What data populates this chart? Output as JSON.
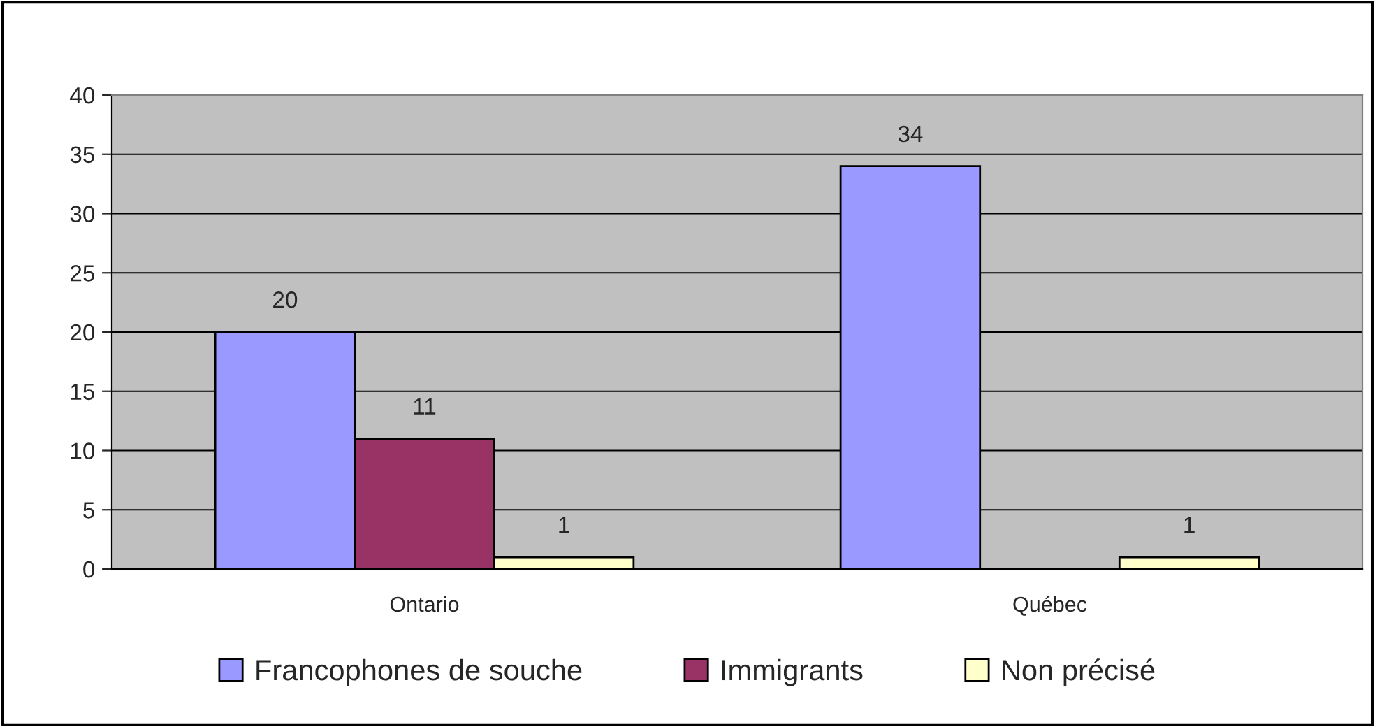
{
  "chart_data": {
    "type": "bar",
    "categories": [
      "Ontario",
      "Québec"
    ],
    "series": [
      {
        "name": "Francophones de souche",
        "color": "#9999ff",
        "values": [
          20,
          34
        ]
      },
      {
        "name": "Immigrants",
        "color": "#993366",
        "values": [
          11,
          null
        ]
      },
      {
        "name": "Non précisé",
        "color": "#ffffcc",
        "values": [
          1,
          1
        ]
      }
    ],
    "ylim": [
      0,
      40
    ],
    "yticks": [
      0,
      5,
      10,
      15,
      20,
      25,
      30,
      35,
      40
    ],
    "grid": "y",
    "legend": "bottom",
    "data_labels": true
  }
}
